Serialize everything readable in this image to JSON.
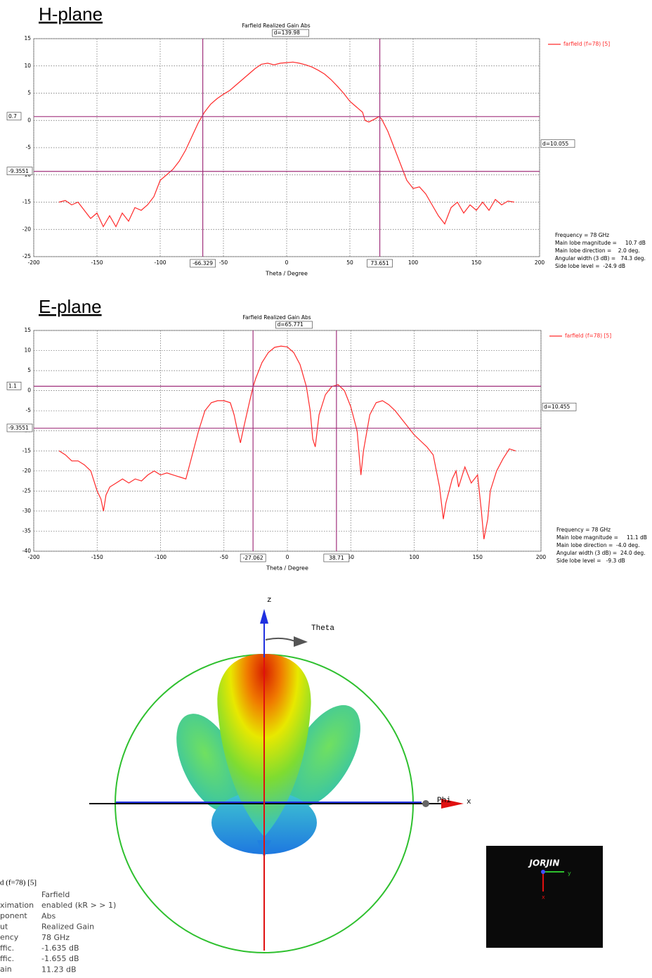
{
  "chart_data": [
    {
      "type": "line",
      "heading": "H-plane",
      "title": "Farfield Realized Gain Abs",
      "xlabel": "Theta / Degree",
      "x": [
        -180,
        -175,
        -170,
        -165,
        -160,
        -155,
        -150,
        -145,
        -140,
        -135,
        -130,
        -125,
        -120,
        -115,
        -110,
        -105,
        -100,
        -95,
        -90,
        -85,
        -80,
        -75,
        -70,
        -65,
        -60,
        -55,
        -50,
        -45,
        -40,
        -35,
        -30,
        -25,
        -20,
        -15,
        -10,
        -5,
        0,
        5,
        10,
        15,
        20,
        25,
        30,
        35,
        40,
        45,
        50,
        55,
        60,
        62,
        65,
        70,
        73,
        75,
        80,
        85,
        90,
        95,
        100,
        105,
        110,
        115,
        120,
        125,
        130,
        135,
        140,
        145,
        150,
        155,
        160,
        165,
        170,
        175,
        180
      ],
      "series": [
        {
          "name": "farfield (f=78) [5]",
          "color": "#ff2a2a",
          "values": [
            -15,
            -14.7,
            -15.5,
            -15,
            -16.5,
            -18,
            -17,
            -19.5,
            -17.5,
            -19.5,
            -17,
            -18.5,
            -16,
            -16.5,
            -15.5,
            -14,
            -11,
            -10,
            -9,
            -7.5,
            -5.5,
            -3,
            -0.5,
            1.5,
            3,
            4,
            4.8,
            5.5,
            6.5,
            7.5,
            8.5,
            9.5,
            10.3,
            10.5,
            10.2,
            10.5,
            10.6,
            10.7,
            10.5,
            10.2,
            9.8,
            9.2,
            8.5,
            7.5,
            6.3,
            5,
            3.5,
            2.5,
            1.5,
            0,
            -0.3,
            0.3,
            0.7,
            0.3,
            -2,
            -5,
            -8,
            -11,
            -12.5,
            -12.2,
            -13.5,
            -15.5,
            -17.5,
            -19,
            -16,
            -15,
            -17,
            -15.5,
            -16.5,
            -15,
            -16.5,
            -14.5,
            -15.5,
            -14.8,
            -15
          ]
        }
      ],
      "xlim": [
        -200,
        200
      ],
      "xticks": [
        -200,
        -150,
        -100,
        -50,
        0,
        50,
        100,
        150,
        200
      ],
      "ylim": [
        -25,
        15
      ],
      "yticks": [
        -25,
        -20,
        -15,
        -10,
        -5,
        0,
        5,
        10,
        15
      ],
      "grid": true,
      "markers": {
        "color": "#a0307c",
        "x": [
          -66.329,
          73.651
        ],
        "y": [
          0.7,
          -9.3551
        ],
        "delta_x": "d=139.98",
        "delta_y": "d=10.055"
      },
      "info": [
        "Frequency = 78 GHz",
        "Main lobe magnitude =     10.7 dB",
        "Main lobe direction =    2.0 deg.",
        "Angular width (3 dB) =   74.3 deg.",
        "Side lobe level =  -24.9 dB"
      ]
    },
    {
      "type": "line",
      "heading": "E-plane",
      "title": "Farfield Realized Gain Abs",
      "xlabel": "Theta / Degree",
      "x": [
        -180,
        -175,
        -170,
        -165,
        -160,
        -155,
        -150,
        -147,
        -145,
        -143,
        -140,
        -135,
        -130,
        -125,
        -120,
        -115,
        -110,
        -105,
        -100,
        -95,
        -90,
        -85,
        -80,
        -75,
        -70,
        -65,
        -60,
        -55,
        -50,
        -45,
        -42,
        -40,
        -37,
        -35,
        -30,
        -27,
        -25,
        -20,
        -15,
        -10,
        -5,
        0,
        5,
        10,
        15,
        18,
        20,
        22,
        25,
        30,
        35,
        40,
        45,
        50,
        55,
        58,
        60,
        65,
        70,
        75,
        80,
        85,
        90,
        95,
        100,
        105,
        110,
        115,
        120,
        123,
        125,
        130,
        133,
        135,
        140,
        145,
        150,
        153,
        155,
        158,
        160,
        165,
        170,
        175,
        180
      ],
      "series": [
        {
          "name": "farfield (f=78) [5]",
          "color": "#ff2a2a",
          "values": [
            -15,
            -16,
            -17.5,
            -17.5,
            -18.5,
            -20,
            -25,
            -27,
            -30,
            -26,
            -24,
            -23,
            -22,
            -23,
            -22,
            -22.5,
            -21,
            -20,
            -21,
            -20.5,
            -21,
            -21.5,
            -22,
            -16,
            -10,
            -5,
            -3,
            -2.5,
            -2.5,
            -3,
            -6,
            -9,
            -13,
            -10,
            -3,
            1,
            3,
            7,
            9.5,
            10.8,
            11.1,
            10.9,
            9.5,
            6.5,
            1,
            -5,
            -12,
            -14,
            -6,
            -1,
            1,
            1.5,
            0,
            -4,
            -10,
            -21,
            -15,
            -6,
            -3,
            -2.5,
            -3.5,
            -5,
            -7,
            -9,
            -11,
            -12.5,
            -14,
            -16,
            -24,
            -32,
            -28,
            -22,
            -20,
            -24,
            -19,
            -23,
            -21,
            -30,
            -37,
            -32,
            -25,
            -20,
            -17,
            -14.5,
            -15
          ]
        }
      ],
      "xlim": [
        -200,
        200
      ],
      "xticks": [
        -200,
        -150,
        -100,
        -50,
        0,
        50,
        100,
        150,
        200
      ],
      "ylim": [
        -40,
        15
      ],
      "yticks": [
        -40,
        -35,
        -30,
        -25,
        -20,
        -15,
        -10,
        -5,
        0,
        5,
        10,
        15
      ],
      "grid": true,
      "markers": {
        "color": "#a0307c",
        "x": [
          -27.062,
          38.71
        ],
        "y": [
          1.1,
          -9.3551
        ],
        "delta_x": "d=65.771",
        "delta_y": "d=10.455"
      },
      "info": [
        "Frequency = 78 GHz",
        "Main lobe magnitude =     11.1 dB",
        "Main lobe direction =  -4.0 deg.",
        "Angular width (3 dB) =  24.0 deg.",
        "Side lobe level =   -9.3 dB"
      ]
    }
  ],
  "farfield_3d": {
    "axis_z": "z",
    "axis_x": "x",
    "theta": "Theta",
    "phi": "Phi",
    "legend_title": "d (f=78) [5]",
    "legend_keys": [
      "ximation",
      "ponent",
      "ut",
      "ency",
      "ffic.",
      "ffic.",
      "ain"
    ],
    "legend_values": [
      "Farfield",
      "enabled (kR > > 1)",
      "Abs",
      "Realized Gain",
      "78 GHz",
      "-1.635 dB",
      "-1.655 dB",
      "11.23 dB"
    ],
    "inset_logo": "JORJIN",
    "inset_y": "y",
    "inset_x": "x"
  }
}
